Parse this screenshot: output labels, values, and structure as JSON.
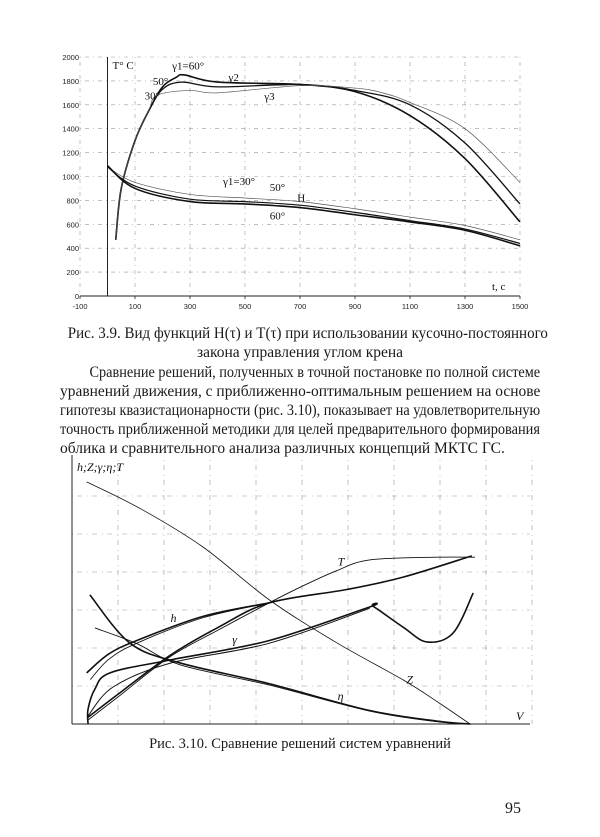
{
  "figure_3_9": {
    "caption_line1": "Рис. 3.9. Вид функций H(τ) и T(τ) при использовании кусочно-постоянного",
    "caption_line2": "закона управления углом крена"
  },
  "paragraph": [
    "Сравнение решений, полученных в точной постановке по полной системе",
    "уравнений движения, с приближенно-оптимальным решением на основе",
    "гипотезы квазистационарности (рис. 3.10), показывает на удовлетворительную",
    "точность приближенной методики для целей предварительного формирования",
    "облика и сравнительного анализа различных концепций МКТС ГС."
  ],
  "figure_3_10": {
    "caption": "Рис. 3.10. Сравнение решений систем уравнений"
  },
  "page_number": "95",
  "chart_data": [
    {
      "type": "line",
      "ylabel": "T° C",
      "xlabel": "t, c",
      "xlim": [
        -100,
        1500
      ],
      "ylim": [
        0,
        2000
      ],
      "x_ticks": [
        "-100",
        "100",
        "300",
        "500",
        "700",
        "900",
        "1100",
        "1300",
        "1500"
      ],
      "y_ticks": [
        "0",
        "200",
        "400",
        "600",
        "800",
        "1000",
        "1200",
        "1400",
        "1600",
        "1800",
        "2000"
      ],
      "grid": true,
      "annotations": [
        "γ1=60°",
        "50°",
        "30°",
        "γ2",
        "γ3",
        "γ1=30°",
        "50°",
        "H",
        "60°"
      ],
      "series": [
        {
          "name": "T γ1=60°",
          "points": [
            [
              30,
              470
            ],
            [
              50,
              900
            ],
            [
              100,
              1300
            ],
            [
              150,
              1550
            ],
            [
              200,
              1750
            ],
            [
              250,
              1830
            ],
            [
              280,
              1850
            ],
            [
              400,
              1790
            ],
            [
              700,
              1770
            ],
            [
              900,
              1710
            ],
            [
              1100,
              1510
            ],
            [
              1300,
              1150
            ],
            [
              1500,
              620
            ]
          ]
        },
        {
          "name": "T γ1=50°",
          "points": [
            [
              30,
              470
            ],
            [
              50,
              900
            ],
            [
              100,
              1300
            ],
            [
              150,
              1550
            ],
            [
              200,
              1730
            ],
            [
              270,
              1790
            ],
            [
              400,
              1750
            ],
            [
              700,
              1770
            ],
            [
              900,
              1720
            ],
            [
              1100,
              1600
            ],
            [
              1300,
              1280
            ],
            [
              1500,
              770
            ]
          ]
        },
        {
          "name": "T γ1=30°",
          "points": [
            [
              30,
              470
            ],
            [
              50,
              900
            ],
            [
              100,
              1300
            ],
            [
              150,
              1550
            ],
            [
              180,
              1680
            ],
            [
              300,
              1720
            ],
            [
              400,
              1700
            ],
            [
              700,
              1760
            ],
            [
              900,
              1740
            ],
            [
              1000,
              1700
            ],
            [
              1100,
              1620
            ],
            [
              1300,
              1400
            ],
            [
              1500,
              950
            ]
          ]
        },
        {
          "name": "H γ1=30°",
          "points": [
            [
              0,
              1080
            ],
            [
              100,
              950
            ],
            [
              300,
              850
            ],
            [
              500,
              820
            ],
            [
              700,
              790
            ],
            [
              900,
              730
            ],
            [
              1100,
              660
            ],
            [
              1300,
              590
            ],
            [
              1500,
              470
            ]
          ]
        },
        {
          "name": "H 50°",
          "points": [
            [
              0,
              1080
            ],
            [
              100,
              920
            ],
            [
              300,
              810
            ],
            [
              500,
              790
            ],
            [
              700,
              760
            ],
            [
              900,
              700
            ],
            [
              1100,
              630
            ],
            [
              1300,
              560
            ],
            [
              1500,
              440
            ]
          ]
        },
        {
          "name": "H 60°",
          "points": [
            [
              0,
              1090
            ],
            [
              100,
              900
            ],
            [
              300,
              790
            ],
            [
              500,
              770
            ],
            [
              700,
              740
            ],
            [
              900,
              680
            ],
            [
              1100,
              620
            ],
            [
              1300,
              550
            ],
            [
              1500,
              420
            ]
          ]
        }
      ]
    },
    {
      "type": "line",
      "ylabel": "h;Z;γ;η;T",
      "xlabel": "V",
      "xlim": [
        0,
        100
      ],
      "ylim": [
        0,
        100
      ],
      "grid": true,
      "series": [
        {
          "name": "Z",
          "points": [
            [
              3.2,
              90
            ],
            [
              15,
              80
            ],
            [
              28.6,
              65.8
            ],
            [
              43.2,
              46
            ],
            [
              58,
              30
            ],
            [
              72.3,
              16.4
            ],
            [
              80,
              8
            ],
            [
              86.9,
              0
            ]
          ]
        },
        {
          "name": "T",
          "points": [
            [
              3.5,
              1.5
            ],
            [
              10,
              10
            ],
            [
              21.4,
              25
            ],
            [
              32,
              35
            ],
            [
              43,
              45
            ],
            [
              50,
              51
            ],
            [
              57.8,
              57
            ],
            [
              65,
              61
            ],
            [
              79.6,
              62
            ],
            [
              88,
              62
            ]
          ]
        },
        {
          "name": "T",
          "points": [
            [
              3.5,
              2.5
            ],
            [
              10,
              11
            ],
            [
              21.4,
              25.5
            ],
            [
              32,
              36
            ],
            [
              43,
              45
            ],
            [
              60,
              50
            ],
            [
              72.3,
              54.6
            ],
            [
              87.3,
              62.5
            ]
          ]
        },
        {
          "name": "h",
          "points": [
            [
              3.2,
              19
            ],
            [
              8,
              26
            ],
            [
              14.1,
              31
            ],
            [
              28.6,
              40
            ],
            [
              43,
              45
            ]
          ]
        },
        {
          "name": "h",
          "points": [
            [
              4,
              16.5
            ],
            [
              8,
              24
            ],
            [
              14.1,
              30
            ],
            [
              28.6,
              39.5
            ],
            [
              43,
              45
            ]
          ]
        },
        {
          "name": "γ",
          "points": [
            [
              3.5,
              0
            ],
            [
              3.5,
              5.5
            ],
            [
              5,
              13
            ],
            [
              8.3,
              19
            ],
            [
              21.4,
              23.8
            ],
            [
              43,
              31
            ],
            [
              65,
              43.5
            ],
            [
              65.8,
              43.7
            ],
            [
              72.3,
              36
            ],
            [
              77.5,
              30.5
            ],
            [
              83.2,
              33.8
            ],
            [
              87.6,
              48.7
            ]
          ]
        },
        {
          "name": "γ",
          "points": [
            [
              3.5,
              3
            ],
            [
              9,
              13.8
            ],
            [
              21.4,
              22.6
            ],
            [
              43,
              30
            ],
            [
              65,
              43
            ]
          ]
        },
        {
          "name": "η",
          "points": [
            [
              3.9,
              48
            ],
            [
              12.7,
              30
            ],
            [
              23.6,
              22.7
            ],
            [
              43,
              15
            ],
            [
              65,
              5
            ],
            [
              80,
              1
            ],
            [
              87,
              0
            ]
          ]
        },
        {
          "name": "η",
          "points": [
            [
              5,
              35.7
            ],
            [
              14,
              30
            ],
            [
              23.6,
              22
            ],
            [
              43,
              14.5
            ],
            [
              65,
              4.8
            ],
            [
              80,
              0.8
            ],
            [
              87,
              0
            ]
          ]
        }
      ],
      "annotations": [
        "T",
        "h",
        "γ",
        "η",
        "Z"
      ]
    }
  ]
}
